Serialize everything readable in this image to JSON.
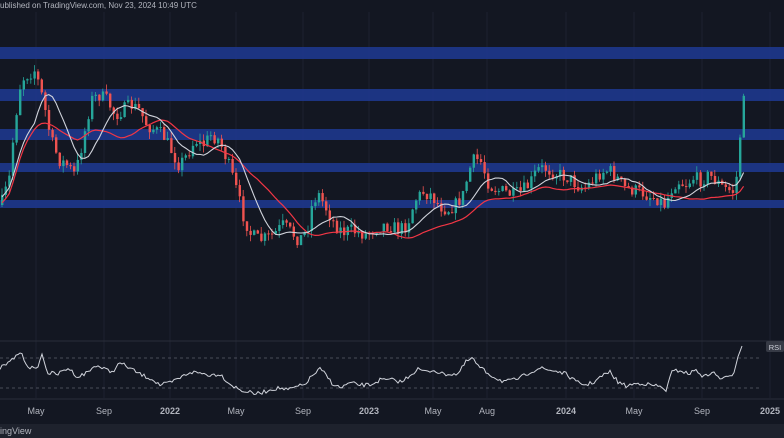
{
  "header": {
    "published_text": "ublished on TradingView.com, Nov 23, 2024 10:49 UTC"
  },
  "footer": {
    "brand": "ingView"
  },
  "colors": {
    "background": "#131722",
    "support_band": "#1f3a93",
    "candle_up": "#26a69a",
    "candle_down": "#ef5350",
    "ma_fast": "#d1d4dc",
    "ma_slow": "#f23645",
    "rsi_line": "#d1d4dc"
  },
  "chart_data": {
    "type": "candlestick",
    "x_ticks": [
      "May",
      "Sep",
      "2022",
      "May",
      "Sep",
      "2023",
      "May",
      "Aug",
      "2024",
      "May",
      "Sep",
      "2025"
    ],
    "bold_ticks": [
      "2022",
      "2023",
      "2024",
      "2025"
    ],
    "support_bands": 5,
    "path_anchors": [
      [
        0,
        205
      ],
      [
        8,
        180
      ],
      [
        14,
        120
      ],
      [
        20,
        80
      ],
      [
        26,
        75
      ],
      [
        34,
        70
      ],
      [
        42,
        100
      ],
      [
        50,
        140
      ],
      [
        58,
        160
      ],
      [
        66,
        165
      ],
      [
        74,
        175
      ],
      [
        82,
        140
      ],
      [
        90,
        100
      ],
      [
        98,
        95
      ],
      [
        106,
        100
      ],
      [
        114,
        115
      ],
      [
        122,
        110
      ],
      [
        130,
        105
      ],
      [
        138,
        110
      ],
      [
        146,
        125
      ],
      [
        154,
        130
      ],
      [
        162,
        135
      ],
      [
        170,
        150
      ],
      [
        178,
        165
      ],
      [
        186,
        155
      ],
      [
        194,
        140
      ],
      [
        202,
        145
      ],
      [
        210,
        135
      ],
      [
        218,
        140
      ],
      [
        226,
        160
      ],
      [
        234,
        185
      ],
      [
        242,
        215
      ],
      [
        250,
        235
      ],
      [
        258,
        240
      ],
      [
        266,
        238
      ],
      [
        274,
        233
      ],
      [
        282,
        225
      ],
      [
        290,
        232
      ],
      [
        298,
        240
      ],
      [
        306,
        230
      ],
      [
        312,
        200
      ],
      [
        318,
        195
      ],
      [
        326,
        210
      ],
      [
        334,
        225
      ],
      [
        342,
        232
      ],
      [
        350,
        230
      ],
      [
        358,
        233
      ],
      [
        366,
        234
      ],
      [
        374,
        228
      ],
      [
        382,
        225
      ],
      [
        390,
        226
      ],
      [
        398,
        230
      ],
      [
        406,
        225
      ],
      [
        414,
        200
      ],
      [
        422,
        192
      ],
      [
        430,
        195
      ],
      [
        438,
        205
      ],
      [
        446,
        210
      ],
      [
        454,
        205
      ],
      [
        462,
        195
      ],
      [
        468,
        170
      ],
      [
        474,
        158
      ],
      [
        480,
        162
      ],
      [
        488,
        185
      ],
      [
        496,
        190
      ],
      [
        504,
        192
      ],
      [
        512,
        195
      ],
      [
        520,
        192
      ],
      [
        528,
        185
      ],
      [
        536,
        170
      ],
      [
        544,
        168
      ],
      [
        552,
        172
      ],
      [
        560,
        175
      ],
      [
        568,
        178
      ],
      [
        576,
        185
      ],
      [
        584,
        188
      ],
      [
        592,
        180
      ],
      [
        600,
        172
      ],
      [
        608,
        170
      ],
      [
        616,
        178
      ],
      [
        624,
        188
      ],
      [
        632,
        190
      ],
      [
        640,
        192
      ],
      [
        648,
        196
      ],
      [
        656,
        198
      ],
      [
        664,
        205
      ],
      [
        670,
        190
      ],
      [
        676,
        180
      ],
      [
        684,
        185
      ],
      [
        692,
        178
      ],
      [
        700,
        180
      ],
      [
        708,
        175
      ],
      [
        716,
        182
      ],
      [
        722,
        188
      ],
      [
        728,
        190
      ],
      [
        734,
        192
      ],
      [
        738,
        150
      ],
      [
        742,
        100
      ],
      [
        746,
        72
      ]
    ],
    "rsi_anchors": [
      [
        0,
        368
      ],
      [
        10,
        362
      ],
      [
        20,
        352
      ],
      [
        28,
        366
      ],
      [
        36,
        370
      ],
      [
        42,
        355
      ],
      [
        48,
        373
      ],
      [
        58,
        374
      ],
      [
        68,
        368
      ],
      [
        78,
        377
      ],
      [
        88,
        372
      ],
      [
        96,
        365
      ],
      [
        104,
        369
      ],
      [
        112,
        372
      ],
      [
        120,
        363
      ],
      [
        128,
        367
      ],
      [
        136,
        372
      ],
      [
        144,
        376
      ],
      [
        152,
        379
      ],
      [
        160,
        385
      ],
      [
        170,
        383
      ],
      [
        180,
        378
      ],
      [
        190,
        372
      ],
      [
        200,
        373
      ],
      [
        210,
        375
      ],
      [
        220,
        374
      ],
      [
        230,
        384
      ],
      [
        240,
        390
      ],
      [
        248,
        392
      ],
      [
        256,
        394
      ],
      [
        264,
        392
      ],
      [
        272,
        389
      ],
      [
        280,
        388
      ],
      [
        288,
        390
      ],
      [
        296,
        387
      ],
      [
        304,
        385
      ],
      [
        312,
        376
      ],
      [
        320,
        369
      ],
      [
        326,
        375
      ],
      [
        332,
        383
      ],
      [
        340,
        388
      ],
      [
        350,
        383
      ],
      [
        360,
        385
      ],
      [
        370,
        385
      ],
      [
        380,
        380
      ],
      [
        392,
        380
      ],
      [
        402,
        382
      ],
      [
        410,
        375
      ],
      [
        418,
        369
      ],
      [
        426,
        372
      ],
      [
        434,
        370
      ],
      [
        442,
        374
      ],
      [
        450,
        374
      ],
      [
        458,
        374
      ],
      [
        466,
        362
      ],
      [
        472,
        358
      ],
      [
        478,
        366
      ],
      [
        486,
        372
      ],
      [
        494,
        377
      ],
      [
        502,
        381
      ],
      [
        510,
        381
      ],
      [
        520,
        378
      ],
      [
        530,
        372
      ],
      [
        540,
        368
      ],
      [
        548,
        370
      ],
      [
        556,
        371
      ],
      [
        566,
        374
      ],
      [
        576,
        382
      ],
      [
        586,
        385
      ],
      [
        594,
        382
      ],
      [
        602,
        376
      ],
      [
        610,
        372
      ],
      [
        618,
        382
      ],
      [
        626,
        386
      ],
      [
        634,
        384
      ],
      [
        642,
        383
      ],
      [
        650,
        385
      ],
      [
        658,
        386
      ],
      [
        666,
        390
      ],
      [
        672,
        372
      ],
      [
        680,
        370
      ],
      [
        688,
        374
      ],
      [
        696,
        370
      ],
      [
        704,
        377
      ],
      [
        712,
        372
      ],
      [
        720,
        378
      ],
      [
        728,
        378
      ],
      [
        734,
        372
      ],
      [
        738,
        355
      ],
      [
        742,
        345
      ]
    ]
  }
}
